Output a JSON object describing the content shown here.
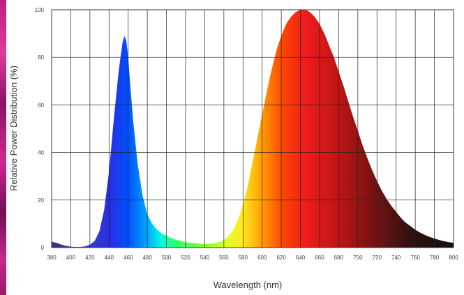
{
  "chart_data": {
    "type": "area",
    "xlabel": "Wavelength (nm)",
    "ylabel": "Relative Power Distribution (%)",
    "xlim": [
      380,
      800
    ],
    "ylim": [
      0,
      100
    ],
    "x_ticks": [
      "380",
      "400",
      "420",
      "440",
      "460",
      "480",
      "500",
      "520",
      "540",
      "560",
      "580",
      "600",
      "620",
      "640",
      "660",
      "680",
      "700",
      "720",
      "740",
      "760",
      "780",
      "800"
    ],
    "y_ticks": [
      "0",
      "20",
      "40",
      "60",
      "80",
      "100"
    ],
    "grid": true,
    "fill": "spectral color gradient",
    "series": [
      {
        "x": [
          380,
          385,
          390,
          395,
          400,
          405,
          410,
          415,
          420,
          425,
          430,
          435,
          440,
          445,
          450,
          452,
          454,
          456,
          458,
          460,
          462,
          465,
          470,
          475,
          480,
          485,
          490,
          495,
          500,
          505,
          510,
          515,
          520,
          525,
          530,
          535,
          540,
          545,
          550,
          555,
          560,
          565,
          570,
          575,
          580,
          585,
          590,
          595,
          600,
          605,
          610,
          615,
          620,
          625,
          630,
          635,
          640,
          645,
          648,
          650,
          655,
          660,
          665,
          670,
          675,
          680,
          685,
          690,
          695,
          700,
          705,
          710,
          715,
          720,
          725,
          730,
          735,
          740,
          745,
          750,
          755,
          760,
          765,
          770,
          775,
          780,
          785,
          790,
          795,
          800
        ],
        "values": [
          2.5,
          2.0,
          1.3,
          0.7,
          0.4,
          0.3,
          0.3,
          0.5,
          1.2,
          2.8,
          7,
          16,
          32,
          54,
          74,
          80,
          86,
          89,
          87,
          80,
          69,
          54,
          35,
          22,
          14,
          10,
          7.5,
          6,
          5,
          4,
          3.3,
          2.8,
          2.3,
          2,
          1.8,
          1.6,
          1.5,
          1.6,
          1.8,
          2.3,
          3.2,
          4.8,
          7.5,
          12,
          18,
          26,
          36,
          46,
          56,
          66,
          75,
          83,
          89,
          94,
          97,
          99,
          100,
          100,
          99.5,
          99,
          97,
          94,
          90,
          85,
          80,
          74,
          68,
          61.5,
          55,
          49,
          43,
          37.5,
          32.5,
          28,
          24,
          20.5,
          17.5,
          15,
          12.5,
          10.5,
          9,
          7.5,
          6.3,
          5.3,
          4.5,
          3.8,
          3.2,
          2.7,
          2.3,
          2
        ]
      }
    ],
    "colors": {
      "spectrum": [
        {
          "nm": 380,
          "hex": "#3c2f86"
        },
        {
          "nm": 420,
          "hex": "#2f3fc7"
        },
        {
          "nm": 440,
          "hex": "#2a2ee0"
        },
        {
          "nm": 460,
          "hex": "#0050ff"
        },
        {
          "nm": 480,
          "hex": "#00a8ff"
        },
        {
          "nm": 495,
          "hex": "#00ffe0"
        },
        {
          "nm": 510,
          "hex": "#30ff6a"
        },
        {
          "nm": 540,
          "hex": "#7cff2a"
        },
        {
          "nm": 565,
          "hex": "#e2ff20"
        },
        {
          "nm": 580,
          "hex": "#ffe620"
        },
        {
          "nm": 600,
          "hex": "#ff9d00"
        },
        {
          "nm": 620,
          "hex": "#ff4a00"
        },
        {
          "nm": 645,
          "hex": "#ef1c1c"
        },
        {
          "nm": 680,
          "hex": "#c01414"
        },
        {
          "nm": 720,
          "hex": "#6e1212"
        },
        {
          "nm": 760,
          "hex": "#2a1010"
        },
        {
          "nm": 800,
          "hex": "#151010"
        }
      ],
      "grid": "#222222",
      "axis": "#333333"
    }
  }
}
